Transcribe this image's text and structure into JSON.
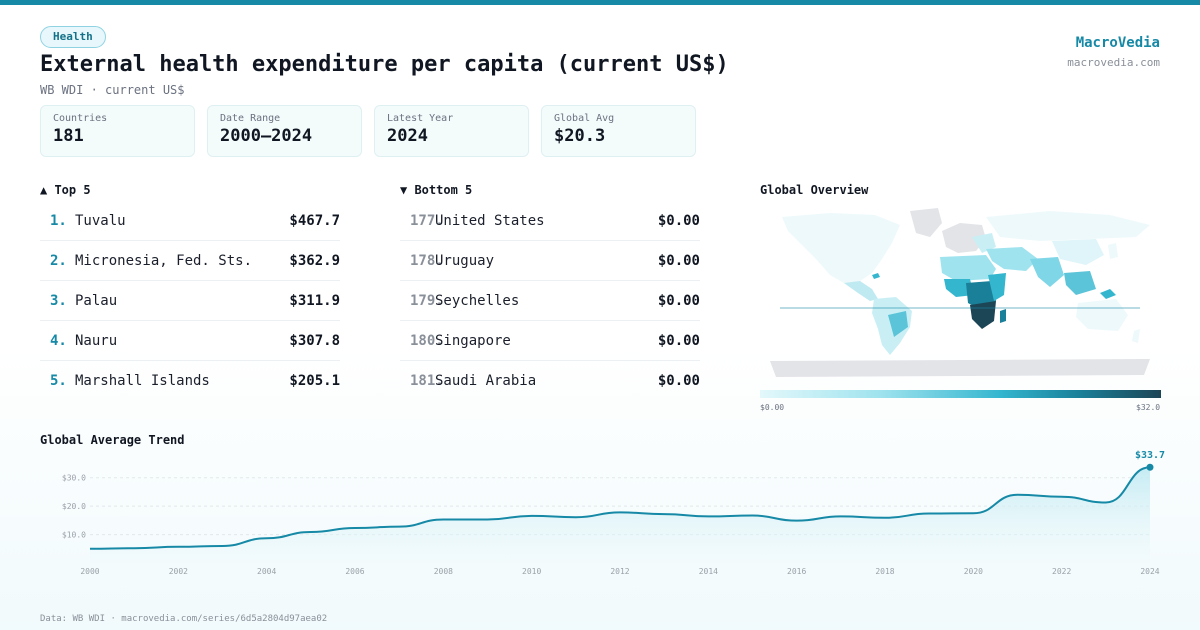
{
  "tag": "Health",
  "title": "External health expenditure per capita (current US$)",
  "subtitle": "WB WDI · current US$",
  "brand": {
    "name": "MacroVedia",
    "url": "macrovedia.com"
  },
  "stats": [
    {
      "label": "Countries",
      "value": "181"
    },
    {
      "label": "Date Range",
      "value": "2000–2024"
    },
    {
      "label": "Latest Year",
      "value": "2024"
    },
    {
      "label": "Global Avg",
      "value": "$20.3"
    }
  ],
  "top5": {
    "heading": "▲ Top 5",
    "items": [
      {
        "rank": "1.",
        "name": "Tuvalu",
        "value": "$467.7"
      },
      {
        "rank": "2.",
        "name": "Micronesia, Fed. Sts.",
        "value": "$362.9"
      },
      {
        "rank": "3.",
        "name": "Palau",
        "value": "$311.9"
      },
      {
        "rank": "4.",
        "name": "Nauru",
        "value": "$307.8"
      },
      {
        "rank": "5.",
        "name": "Marshall Islands",
        "value": "$205.1"
      }
    ]
  },
  "bottom5": {
    "heading": "▼ Bottom 5",
    "items": [
      {
        "rank": "177.",
        "name": "United States",
        "value": "$0.00"
      },
      {
        "rank": "178.",
        "name": "Uruguay",
        "value": "$0.00"
      },
      {
        "rank": "179.",
        "name": "Seychelles",
        "value": "$0.00"
      },
      {
        "rank": "180.",
        "name": "Singapore",
        "value": "$0.00"
      },
      {
        "rank": "181.",
        "name": "Saudi Arabia",
        "value": "$0.00"
      }
    ]
  },
  "map": {
    "heading": "Global Overview",
    "legend_min": "$0.00",
    "legend_max": "$32.0",
    "colors": {
      "no_data": "#e3e4e8",
      "low": "#e3f8fb",
      "mid": "#34b6cf",
      "high": "#1c4556"
    }
  },
  "chart_data": {
    "type": "area",
    "title": "Global Average Trend",
    "xlabel": "",
    "ylabel": "",
    "x": [
      2000,
      2001,
      2002,
      2003,
      2004,
      2005,
      2006,
      2007,
      2008,
      2009,
      2010,
      2011,
      2012,
      2013,
      2014,
      2015,
      2016,
      2017,
      2018,
      2019,
      2020,
      2021,
      2022,
      2023,
      2024
    ],
    "values": [
      5.0,
      5.2,
      5.7,
      6.0,
      8.7,
      10.9,
      12.3,
      12.8,
      15.3,
      15.3,
      16.6,
      16.1,
      17.8,
      17.2,
      16.4,
      16.7,
      14.9,
      16.4,
      15.9,
      17.4,
      17.5,
      24.0,
      23.3,
      21.3,
      33.7
    ],
    "x_ticks": [
      "2000",
      "2002",
      "2004",
      "2006",
      "2008",
      "2010",
      "2012",
      "2014",
      "2016",
      "2018",
      "2020",
      "2022",
      "2024"
    ],
    "y_ticks": [
      "$10.0",
      "$20.0",
      "$30.0"
    ],
    "y_tick_values": [
      10,
      20,
      30
    ],
    "ylim": [
      0,
      38
    ],
    "end_label": "$33.7",
    "grid": true,
    "colors": {
      "line": "#1689a6",
      "fill": "#cdeef5"
    }
  },
  "footer": "Data: WB WDI · macrovedia.com/series/6d5a2804d97aea02"
}
